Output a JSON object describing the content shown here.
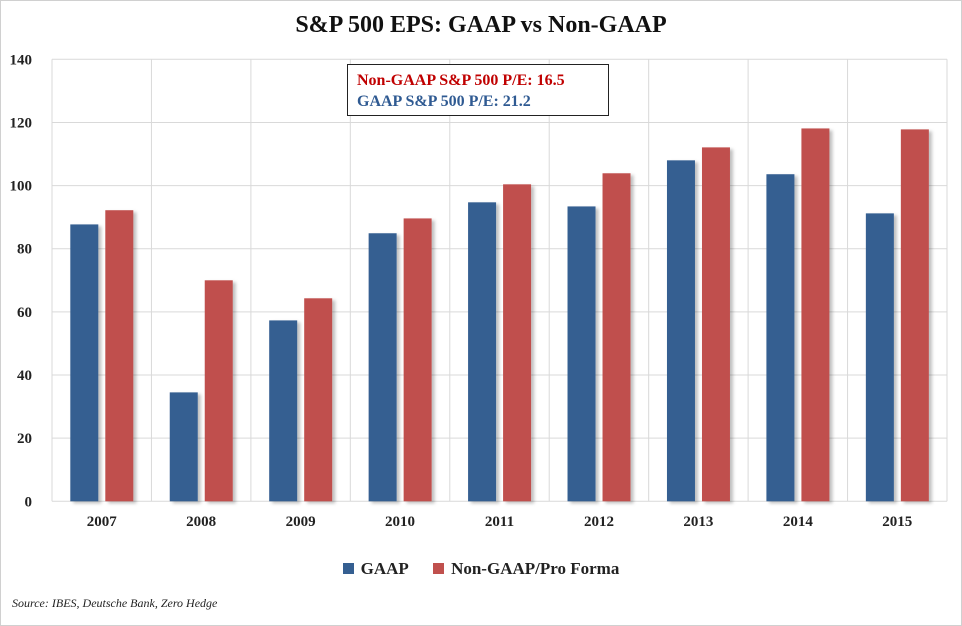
{
  "chart_data": {
    "type": "bar",
    "title": "S&P 500 EPS: GAAP vs Non-GAAP",
    "categories": [
      "2007",
      "2008",
      "2009",
      "2010",
      "2011",
      "2012",
      "2013",
      "2014",
      "2015"
    ],
    "series": [
      {
        "name": "GAAP",
        "color": "#355f91",
        "values": [
          87.7,
          34.5,
          57.3,
          84.9,
          94.7,
          93.4,
          108.0,
          103.6,
          91.2
        ]
      },
      {
        "name": "Non-GAAP/Pro Forma",
        "color": "#c0504d",
        "values": [
          92.2,
          70.0,
          64.3,
          89.6,
          100.4,
          103.9,
          112.1,
          118.1,
          117.8
        ]
      }
    ],
    "ylim": [
      0,
      140
    ],
    "yticks": [
      "0",
      "20",
      "40",
      "60",
      "80",
      "100",
      "120",
      "140"
    ],
    "grid": true,
    "legend": "bottom",
    "annotation": {
      "nongaap_pe": "Non-GAAP S&P 500 P/E: 16.5",
      "gaap_pe": "GAAP S&P 500 P/E: 21.2",
      "nongaap_color": "#c00000",
      "gaap_color": "#2f5a92"
    },
    "source": "Source: IBES, Deutsche Bank, Zero Hedge"
  }
}
